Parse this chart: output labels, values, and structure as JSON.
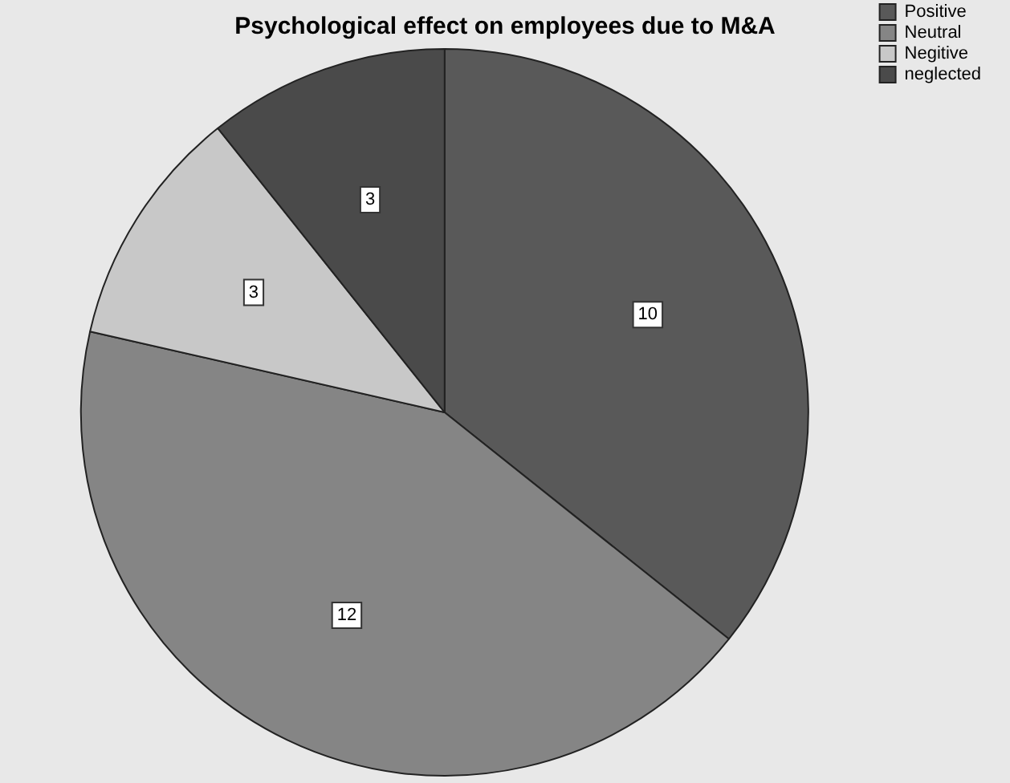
{
  "chart_data": {
    "type": "pie",
    "title": "Psychological effect on employees due to M&A",
    "categories": [
      "Positive",
      "Neutral",
      "Negitive",
      "neglected"
    ],
    "values": [
      10,
      12,
      3,
      3
    ],
    "colors": [
      "#595959",
      "#858585",
      "#c8c8c8",
      "#4a4a4a"
    ],
    "data_labels": true,
    "legend": "top right"
  }
}
